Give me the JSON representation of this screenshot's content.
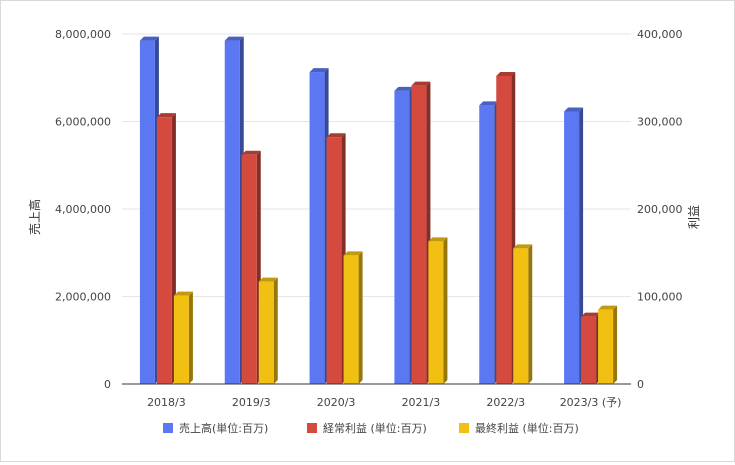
{
  "chart_data": {
    "type": "bar",
    "categories": [
      "2018/3",
      "2019/3",
      "2020/3",
      "2021/3",
      "2022/3",
      "2023/3 (予)"
    ],
    "series": [
      {
        "name": "売上高(単位:百万)",
        "axis": "left",
        "color": "#5b78f2",
        "values": [
          7850000,
          7850000,
          7130000,
          6700000,
          6370000,
          6230000
        ]
      },
      {
        "name": "経常利益 (単位:百万)",
        "axis": "right",
        "color": "#d44a3f",
        "values": [
          305000,
          262000,
          282000,
          341000,
          352000,
          77000
        ]
      },
      {
        "name": "最終利益 (単位:百万)",
        "axis": "right",
        "color": "#f2c012",
        "values": [
          101000,
          117000,
          147000,
          163000,
          155000,
          85000
        ]
      }
    ],
    "y_left": {
      "label": "売上高",
      "ylim": [
        0,
        8000000
      ],
      "ticks": [
        "0",
        "2,000,000",
        "4,000,000",
        "6,000,000",
        "8,000,000"
      ]
    },
    "y_right": {
      "label": "利益",
      "ylim": [
        0,
        400000
      ],
      "ticks": [
        "0",
        "100,000",
        "200,000",
        "300,000",
        "400,000"
      ]
    },
    "grid": true,
    "legend_position": "bottom",
    "style": "3d-bar"
  }
}
